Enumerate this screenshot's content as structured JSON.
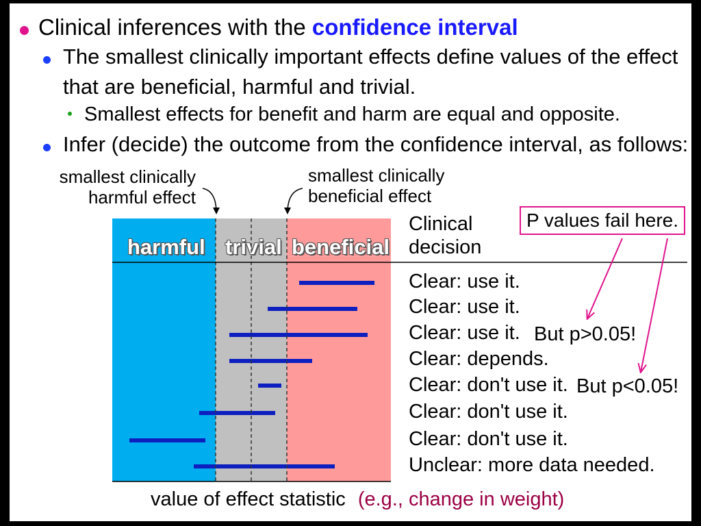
{
  "bullets": {
    "b1_prefix": "Clinical inferences with the ",
    "b1_highlight": "confidence interval",
    "b2_line1": "The smallest clinically important effects define values of the effect",
    "b2_line2": "that are beneficial, harmful and trivial.",
    "b3": "Smallest effects for benefit and harm are equal and opposite.",
    "b4": "Infer (decide) the outcome from the confidence interval, as follows:"
  },
  "annotations": {
    "harmful_line1": "smallest clinically",
    "harmful_line2": "harmful effect",
    "beneficial_line1": "smallest clinically",
    "beneficial_line2": "beneficial effect"
  },
  "regions": {
    "harmful": "harmful",
    "trivial": "trivial",
    "beneficial": "beneficial"
  },
  "colors": {
    "harmful": "#00aeef",
    "trivial": "#c0c0c0",
    "beneficial": "#ff9a9a",
    "ci_bar": "#0d1fbf",
    "highlight": "#1a1aff",
    "arrow": "#e0138c",
    "axis_example": "#9b0044"
  },
  "decision_header_line1": "Clinical",
  "decision_header_line2": "decision",
  "intervals": [
    {
      "decision": "Clear: use it.",
      "note": ""
    },
    {
      "decision": "Clear: use it.",
      "note": ""
    },
    {
      "decision": "Clear: use it.",
      "note": "But p>0.05!"
    },
    {
      "decision": "Clear: depends.",
      "note": ""
    },
    {
      "decision": "Clear: don't use it.",
      "note": "But p<0.05!"
    },
    {
      "decision": "Clear: don't use it.",
      "note": ""
    },
    {
      "decision": "Clear: don't use it.",
      "note": ""
    },
    {
      "decision": "Unclear: more data needed.",
      "note": ""
    }
  ],
  "pvalue_box": "P values fail here.",
  "axis_label": "value of effect statistic",
  "axis_example": "(e.g., change in weight)"
}
